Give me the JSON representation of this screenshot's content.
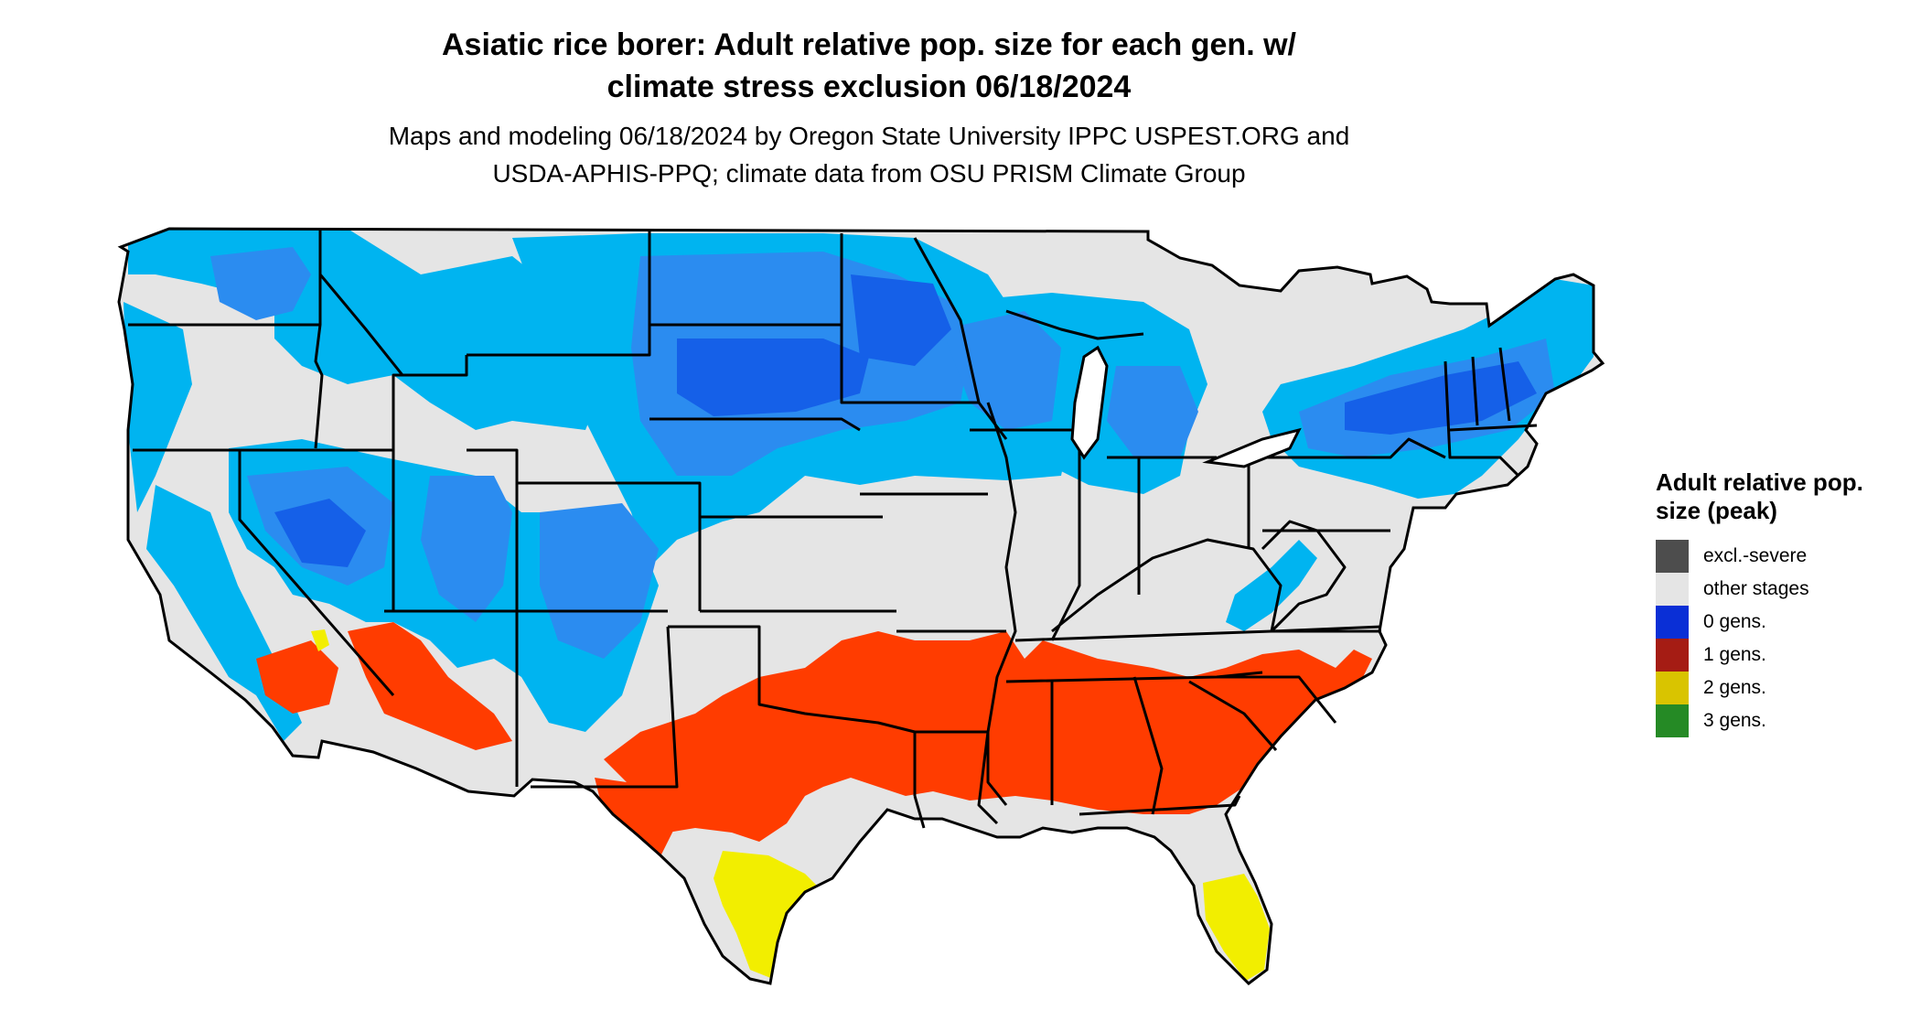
{
  "title_line1": "Asiatic rice borer: Adult relative pop. size for each gen. w/",
  "title_line2": "climate stress exclusion 06/18/2024",
  "subtitle_line1": "Maps and modeling 06/18/2024 by Oregon State University IPPC USPEST.ORG and",
  "subtitle_line2": "USDA-APHIS-PPQ; climate data from OSU PRISM Climate Group",
  "legend": {
    "title": "Adult relative pop. size (peak)",
    "items": [
      {
        "label": "excl.-severe",
        "color": "#4d4d4d"
      },
      {
        "label": "other stages",
        "color": "#e5e5e5"
      },
      {
        "label": "0 gens.",
        "color": "#0a2fd6"
      },
      {
        "label": "1 gens.",
        "color": "#a51c14"
      },
      {
        "label": "2 gens.",
        "color": "#d9c400"
      },
      {
        "label": "3 gens.",
        "color": "#258a25"
      }
    ]
  },
  "map_colors": {
    "background_land": "#e5e5e5",
    "cold_light": "#00b4f0",
    "cold_mid": "#2b8cf0",
    "cold_dark": "#1560e8",
    "one_gen": "#ff3c00",
    "two_gen": "#f2ee00",
    "borders": "#000000"
  }
}
